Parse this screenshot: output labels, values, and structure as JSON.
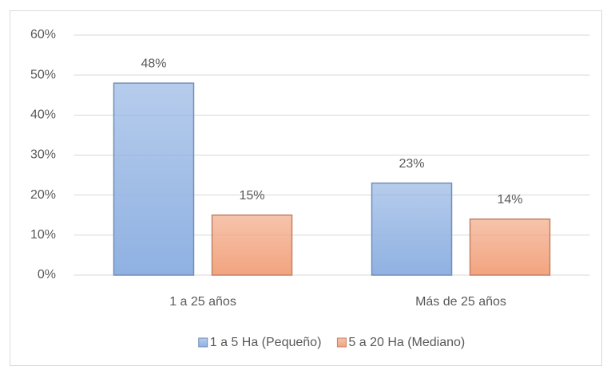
{
  "chart_data": {
    "type": "bar",
    "categories": [
      "1 a 25 años",
      "Más de 25 años"
    ],
    "series": [
      {
        "name": "1 a 5 Ha (Pequeño)",
        "color": "#8fb1e2",
        "values": [
          48,
          23
        ],
        "value_labels": [
          "48%",
          "23%"
        ]
      },
      {
        "name": "5 a 20 Ha (Mediano)",
        "color": "#f2a47f",
        "values": [
          15,
          14
        ],
        "value_labels": [
          "15%",
          "14%"
        ]
      }
    ],
    "ylim": [
      0,
      60
    ],
    "yticks": [
      {
        "value": 0,
        "label": "0%"
      },
      {
        "value": 10,
        "label": "10%"
      },
      {
        "value": 20,
        "label": "20%"
      },
      {
        "value": 30,
        "label": "30%"
      },
      {
        "value": 40,
        "label": "40%"
      },
      {
        "value": 50,
        "label": "50%"
      },
      {
        "value": 60,
        "label": "60%"
      }
    ],
    "grid": true,
    "legend": "bottom"
  }
}
